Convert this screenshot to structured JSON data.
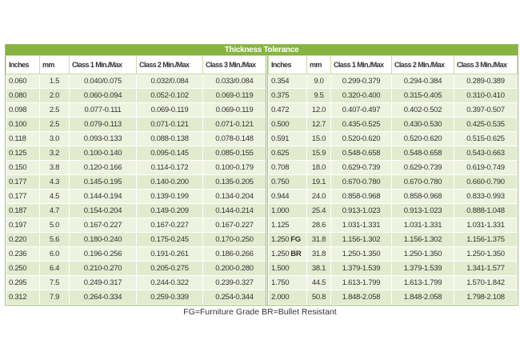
{
  "title": "Thickness Tolerance",
  "left": {
    "headers": [
      "Inches",
      "mm",
      "Class 1 Min./Max",
      "Class 2 Min./Max",
      "Class 3 Min./Max"
    ],
    "rows": [
      [
        "0.060",
        "1.5",
        "0.040/0.075",
        "0.032/0.084",
        "0.033/0.084"
      ],
      [
        "0.080",
        "2.0",
        "0.060-0.094",
        "0.052-0.102",
        "0.069-0.119"
      ],
      [
        "0.098",
        "2.5",
        "0.077-0.111",
        "0.069-0.119",
        "0.069-0.119"
      ],
      [
        "0.100",
        "2.5",
        "0.079-0.113",
        "0.071-0.121",
        "0.071-0.121"
      ],
      [
        "0.118",
        "3.0",
        "0.093-0.133",
        "0.088-0.138",
        "0.078-0.148"
      ],
      [
        "0.125",
        "3.2",
        "0.100-0.140",
        "0.095-0.145",
        "0.085-0.155"
      ],
      [
        "0.150",
        "3.8",
        "0.120-0.166",
        "0.114-0.172",
        "0.100-0.179"
      ],
      [
        "0.177",
        "4.3",
        "0.145-0.195",
        "0.140-0.200",
        "0.135-0.205"
      ],
      [
        "0.177",
        "4.5",
        "0.144-0.194",
        "0.139-0.199",
        "0.134-0.204"
      ],
      [
        "0.187",
        "4.7",
        "0.154-0.204",
        "0.149-0.209",
        "0.144-0.214"
      ],
      [
        "0.197",
        "5.0",
        "0.167-0.227",
        "0.167-0.227",
        "0.167-0.227"
      ],
      [
        "0.220",
        "5.6",
        "0.180-0.240",
        "0.175-0.245",
        "0.170-0.250"
      ],
      [
        "0.236",
        "6.0",
        "0.196-0.256",
        "0.191-0.261",
        "0.186-0.266"
      ],
      [
        "0.250",
        "6.4",
        "0.210-0.270",
        "0.205-0.275",
        "0.200-0.280"
      ],
      [
        "0.295",
        "7.5",
        "0.249-0.317",
        "0.244-0.322",
        "0.239-0.327"
      ],
      [
        "0.312",
        "7.9",
        "0.264-0.334",
        "0.259-0.339",
        "0.254-0.344"
      ]
    ]
  },
  "right": {
    "headers": [
      "Inches",
      "mm",
      "Class 1 Min./Max",
      "Class 2 Min./Max",
      "Class 3 Min./Max"
    ],
    "rows": [
      [
        "0.354",
        "9.0",
        "0.299-0.379",
        "0.294-0.384",
        "0.289-0.389"
      ],
      [
        "0.375",
        "9.5",
        "0.320-0.400",
        "0.315-0.405",
        "0.310-0.410"
      ],
      [
        "0.472",
        "12.0",
        "0.407-0.497",
        "0.402-0.502",
        "0.397-0.507"
      ],
      [
        "0.500",
        "12.7",
        "0.435-0.525",
        "0.430-0.530",
        "0.425-0.535"
      ],
      [
        "0.591",
        "15.0",
        "0.520-0.620",
        "0.520-0.620",
        "0.515-0.625"
      ],
      [
        "0.625",
        "15.9",
        "0.548-0.658",
        "0.548-0.658",
        "0.543-0.663"
      ],
      [
        "0.708",
        "18.0",
        "0.629-0.739",
        "0.629-0.739",
        "0.619-0.749"
      ],
      [
        "0.750",
        "19.1",
        "0.670-0.780",
        "0.670-0.780",
        "0.660-0.790"
      ],
      [
        "0.944",
        "24.0",
        "0.858-0.968",
        "0.858-0.968",
        "0.833-0.993"
      ],
      [
        "1.000",
        "25.4",
        "0.913-1.023",
        "0.913-1.023",
        "0.888-1.048"
      ],
      [
        "1.125",
        "28.6",
        "1.031-1.331",
        "1.031-1.331",
        "1.031-1.331"
      ],
      [
        "1.250",
        "31.8",
        "1.156-1.302",
        "1.156-1.302",
        "1.156-1.375"
      ],
      [
        "1.250",
        "31.8",
        "1.250-1.350",
        "1.250-1.350",
        "1.250-1.350"
      ],
      [
        "1.500",
        "38.1",
        "1.379-1.539",
        "1.379-1.539",
        "1.341-1.577"
      ],
      [
        "1.750",
        "44.5",
        "1.613-1.799",
        "1.613-1.799",
        "1.570-1.842"
      ],
      [
        "2.000",
        "50.8",
        "1.848-2.058",
        "1.848-2.058",
        "1.798-2.108"
      ]
    ],
    "tags": {
      "11": "FG",
      "12": "BR"
    }
  },
  "footnote": "FG=Furniture Grade BR=Bullet Resistant"
}
